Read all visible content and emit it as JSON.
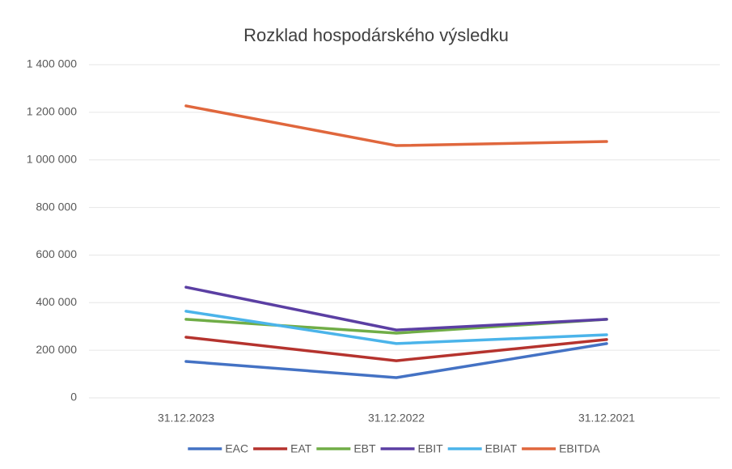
{
  "chart_data": {
    "type": "line",
    "title": "Rozklad hospodárského výsledku",
    "categories": [
      "31.12.2023",
      "31.12.2022",
      "31.12.2021"
    ],
    "series": [
      {
        "name": "EAC",
        "color": "#4472c4",
        "values": [
          153000,
          85000,
          228000
        ]
      },
      {
        "name": "EAT",
        "color": "#b5332e",
        "values": [
          255000,
          156000,
          245000
        ]
      },
      {
        "name": "EBT",
        "color": "#70ad47",
        "values": [
          330000,
          272000,
          330000
        ]
      },
      {
        "name": "EBIT",
        "color": "#5b3fa3",
        "values": [
          465000,
          285000,
          330000
        ]
      },
      {
        "name": "EBIAT",
        "color": "#4bb4ea",
        "values": [
          364000,
          228000,
          265000
        ]
      },
      {
        "name": "EBITDA",
        "color": "#e0673d",
        "values": [
          1227000,
          1060000,
          1077000
        ]
      }
    ],
    "ylim": [
      0,
      1400000
    ],
    "yticks": [
      0,
      {
        "value": 200000,
        "label": "200 000"
      },
      {
        "value": 400000,
        "label": "400 000"
      },
      {
        "value": 600000,
        "label": "600 000"
      },
      {
        "value": 800000,
        "label": "800 000"
      },
      {
        "value": 1000000,
        "label": "1 000 000"
      },
      {
        "value": 1200000,
        "label": "1 200 000"
      },
      {
        "value": 1400000,
        "label": "1 400 000"
      }
    ],
    "grid": true,
    "legend": "bottom"
  }
}
